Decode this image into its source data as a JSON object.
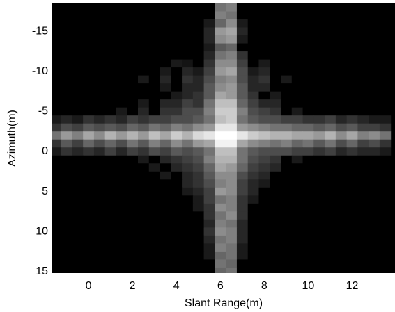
{
  "chart_data": {
    "type": "heatmap",
    "xlabel": "Slant Range(m)",
    "ylabel": "Azimuth(m)",
    "colormap": "gray",
    "xlim": [
      -1.65,
      13.95
    ],
    "ylim": [
      -18.5,
      15.2
    ],
    "y_reversed": true,
    "zlim": [
      0,
      100
    ],
    "xticks": [
      0,
      2,
      4,
      6,
      8,
      10,
      12
    ],
    "yticks": [
      -15,
      -10,
      -5,
      0,
      5,
      10,
      15
    ],
    "x": [
      -1.5,
      -1,
      -0.5,
      0,
      0.5,
      1,
      1.5,
      2,
      2.5,
      3,
      3.5,
      4,
      4.5,
      5,
      5.5,
      6,
      6.5,
      7,
      7.5,
      8,
      8.5,
      9,
      9.5,
      10,
      10.5,
      11,
      11.5,
      12,
      12.5,
      13,
      13.5
    ],
    "y": [
      -18,
      -17,
      -16,
      -15,
      -14,
      -13,
      -12,
      -11,
      -10,
      -9,
      -8,
      -7,
      -6,
      -5,
      -4,
      -3,
      -2,
      -1,
      0,
      1,
      2,
      3,
      4,
      5,
      6,
      7,
      8,
      9,
      10,
      11,
      12,
      13,
      14,
      15
    ],
    "z": [
      [
        0,
        0,
        0,
        0,
        0,
        0,
        0,
        0,
        0,
        0,
        0,
        0,
        0,
        0,
        0,
        45,
        50,
        0,
        0,
        0,
        0,
        0,
        0,
        0,
        0,
        0,
        0,
        0,
        0,
        0,
        0
      ],
      [
        0,
        0,
        0,
        0,
        0,
        0,
        0,
        0,
        0,
        0,
        0,
        0,
        0,
        0,
        0,
        50,
        45,
        0,
        0,
        0,
        0,
        0,
        0,
        0,
        0,
        0,
        0,
        0,
        0,
        0,
        0
      ],
      [
        0,
        0,
        0,
        0,
        0,
        0,
        0,
        0,
        0,
        0,
        0,
        0,
        0,
        0,
        10,
        40,
        55,
        10,
        0,
        0,
        0,
        0,
        0,
        0,
        0,
        0,
        0,
        0,
        0,
        0,
        0
      ],
      [
        0,
        0,
        0,
        0,
        0,
        0,
        0,
        0,
        0,
        0,
        0,
        0,
        0,
        0,
        15,
        60,
        65,
        15,
        0,
        0,
        0,
        0,
        0,
        0,
        0,
        0,
        0,
        0,
        0,
        0,
        0
      ],
      [
        0,
        0,
        0,
        0,
        0,
        0,
        0,
        0,
        0,
        0,
        0,
        0,
        0,
        0,
        15,
        55,
        60,
        10,
        0,
        0,
        0,
        0,
        0,
        0,
        0,
        0,
        0,
        0,
        0,
        0,
        0
      ],
      [
        0,
        0,
        0,
        0,
        0,
        0,
        0,
        0,
        0,
        0,
        0,
        0,
        0,
        0,
        10,
        35,
        40,
        0,
        0,
        0,
        0,
        0,
        0,
        0,
        0,
        0,
        0,
        0,
        0,
        0,
        0
      ],
      [
        0,
        0,
        0,
        0,
        0,
        0,
        0,
        0,
        0,
        0,
        0,
        0,
        0,
        0,
        15,
        45,
        50,
        20,
        0,
        0,
        0,
        0,
        0,
        0,
        0,
        0,
        0,
        0,
        0,
        0,
        0
      ],
      [
        0,
        0,
        0,
        0,
        0,
        0,
        0,
        0,
        0,
        0,
        0,
        10,
        8,
        0,
        20,
        55,
        55,
        25,
        0,
        10,
        0,
        0,
        0,
        0,
        0,
        0,
        0,
        0,
        0,
        0,
        0
      ],
      [
        0,
        0,
        0,
        0,
        0,
        0,
        0,
        0,
        0,
        0,
        10,
        0,
        15,
        10,
        25,
        60,
        65,
        30,
        10,
        15,
        0,
        0,
        0,
        0,
        0,
        0,
        0,
        0,
        0,
        0,
        0
      ],
      [
        0,
        0,
        0,
        0,
        0,
        0,
        0,
        0,
        10,
        0,
        15,
        0,
        20,
        15,
        30,
        50,
        55,
        30,
        15,
        20,
        0,
        10,
        0,
        0,
        0,
        0,
        0,
        0,
        0,
        0,
        0
      ],
      [
        0,
        0,
        0,
        0,
        0,
        0,
        0,
        0,
        0,
        0,
        10,
        0,
        15,
        15,
        35,
        55,
        60,
        35,
        15,
        15,
        0,
        0,
        0,
        0,
        0,
        0,
        0,
        0,
        0,
        0,
        0
      ],
      [
        0,
        0,
        0,
        0,
        0,
        0,
        0,
        0,
        0,
        0,
        0,
        10,
        15,
        20,
        35,
        65,
        60,
        35,
        20,
        0,
        10,
        0,
        0,
        0,
        0,
        0,
        0,
        0,
        0,
        0,
        0
      ],
      [
        0,
        0,
        0,
        0,
        0,
        0,
        0,
        0,
        10,
        0,
        15,
        15,
        25,
        20,
        45,
        75,
        75,
        40,
        25,
        15,
        15,
        0,
        0,
        0,
        0,
        0,
        0,
        0,
        0,
        0,
        0
      ],
      [
        0,
        0,
        0,
        0,
        0,
        0,
        10,
        0,
        15,
        0,
        20,
        20,
        30,
        30,
        50,
        80,
        80,
        50,
        30,
        25,
        20,
        0,
        10,
        0,
        0,
        0,
        0,
        0,
        0,
        0,
        0
      ],
      [
        10,
        15,
        10,
        20,
        15,
        20,
        15,
        25,
        20,
        25,
        25,
        30,
        30,
        35,
        45,
        75,
        80,
        45,
        35,
        30,
        30,
        25,
        25,
        20,
        20,
        25,
        15,
        20,
        15,
        10,
        10
      ],
      [
        20,
        30,
        25,
        35,
        30,
        35,
        30,
        40,
        35,
        45,
        40,
        50,
        45,
        55,
        60,
        90,
        90,
        60,
        55,
        50,
        45,
        45,
        40,
        40,
        35,
        40,
        30,
        35,
        25,
        25,
        20
      ],
      [
        45,
        60,
        50,
        65,
        55,
        70,
        60,
        70,
        60,
        75,
        65,
        80,
        70,
        85,
        90,
        100,
        100,
        90,
        80,
        75,
        70,
        70,
        65,
        65,
        60,
        70,
        55,
        65,
        50,
        55,
        45
      ],
      [
        20,
        35,
        25,
        40,
        30,
        40,
        30,
        45,
        35,
        50,
        40,
        55,
        45,
        60,
        65,
        95,
        95,
        65,
        55,
        50,
        45,
        50,
        40,
        45,
        35,
        45,
        30,
        40,
        25,
        30,
        20
      ],
      [
        10,
        20,
        15,
        20,
        15,
        25,
        15,
        25,
        20,
        30,
        25,
        35,
        30,
        35,
        45,
        75,
        75,
        45,
        35,
        30,
        30,
        30,
        25,
        25,
        20,
        25,
        15,
        20,
        15,
        15,
        10
      ],
      [
        0,
        0,
        0,
        0,
        0,
        0,
        0,
        0,
        10,
        0,
        15,
        20,
        25,
        30,
        50,
        70,
        70,
        45,
        30,
        25,
        20,
        0,
        10,
        0,
        0,
        0,
        0,
        0,
        0,
        0,
        0
      ],
      [
        0,
        0,
        0,
        0,
        0,
        0,
        0,
        0,
        0,
        10,
        0,
        15,
        20,
        25,
        40,
        65,
        60,
        40,
        25,
        20,
        15,
        0,
        0,
        0,
        0,
        0,
        0,
        0,
        0,
        0,
        0
      ],
      [
        0,
        0,
        0,
        0,
        0,
        0,
        0,
        0,
        0,
        0,
        10,
        0,
        15,
        20,
        35,
        55,
        55,
        30,
        20,
        15,
        0,
        0,
        0,
        0,
        0,
        0,
        0,
        0,
        0,
        0,
        0
      ],
      [
        0,
        0,
        0,
        0,
        0,
        0,
        0,
        0,
        0,
        0,
        0,
        0,
        15,
        20,
        30,
        50,
        55,
        25,
        15,
        10,
        0,
        0,
        0,
        0,
        0,
        0,
        0,
        0,
        0,
        0,
        0
      ],
      [
        0,
        0,
        0,
        0,
        0,
        0,
        0,
        0,
        0,
        0,
        0,
        0,
        10,
        15,
        25,
        60,
        55,
        25,
        15,
        0,
        0,
        0,
        0,
        0,
        0,
        0,
        0,
        0,
        0,
        0,
        0
      ],
      [
        0,
        0,
        0,
        0,
        0,
        0,
        0,
        0,
        0,
        0,
        0,
        0,
        0,
        10,
        25,
        45,
        50,
        20,
        10,
        0,
        0,
        0,
        0,
        0,
        0,
        0,
        0,
        0,
        0,
        0,
        0
      ],
      [
        0,
        0,
        0,
        0,
        0,
        0,
        0,
        0,
        0,
        0,
        0,
        0,
        0,
        10,
        20,
        55,
        50,
        20,
        0,
        0,
        0,
        0,
        0,
        0,
        0,
        0,
        0,
        0,
        0,
        0,
        0
      ],
      [
        0,
        0,
        0,
        0,
        0,
        0,
        0,
        0,
        0,
        0,
        0,
        0,
        0,
        0,
        20,
        45,
        55,
        20,
        0,
        0,
        0,
        0,
        0,
        0,
        0,
        0,
        0,
        0,
        0,
        0,
        0
      ],
      [
        0,
        0,
        0,
        0,
        0,
        0,
        0,
        0,
        0,
        0,
        0,
        0,
        0,
        0,
        15,
        50,
        45,
        15,
        0,
        0,
        0,
        0,
        0,
        0,
        0,
        0,
        0,
        0,
        0,
        0,
        0
      ],
      [
        0,
        0,
        0,
        0,
        0,
        0,
        0,
        0,
        0,
        0,
        0,
        0,
        0,
        0,
        20,
        55,
        50,
        15,
        0,
        0,
        0,
        0,
        0,
        0,
        0,
        0,
        0,
        0,
        0,
        0,
        0
      ],
      [
        0,
        0,
        0,
        0,
        0,
        0,
        0,
        0,
        0,
        0,
        0,
        0,
        0,
        0,
        15,
        45,
        50,
        15,
        0,
        0,
        0,
        0,
        0,
        0,
        0,
        0,
        0,
        0,
        0,
        0,
        0
      ],
      [
        0,
        0,
        0,
        0,
        0,
        0,
        0,
        0,
        0,
        0,
        0,
        0,
        0,
        0,
        10,
        50,
        45,
        10,
        0,
        0,
        0,
        0,
        0,
        0,
        0,
        0,
        0,
        0,
        0,
        0,
        0
      ],
      [
        0,
        0,
        0,
        0,
        0,
        0,
        0,
        0,
        0,
        0,
        0,
        0,
        0,
        0,
        10,
        40,
        45,
        10,
        0,
        0,
        0,
        0,
        0,
        0,
        0,
        0,
        0,
        0,
        0,
        0,
        0
      ],
      [
        0,
        0,
        0,
        0,
        0,
        0,
        0,
        0,
        0,
        0,
        0,
        0,
        0,
        0,
        0,
        45,
        40,
        0,
        0,
        0,
        0,
        0,
        0,
        0,
        0,
        0,
        0,
        0,
        0,
        0,
        0
      ],
      [
        0,
        0,
        0,
        0,
        0,
        0,
        0,
        0,
        0,
        0,
        0,
        0,
        0,
        0,
        0,
        40,
        45,
        0,
        0,
        0,
        0,
        0,
        0,
        0,
        0,
        0,
        0,
        0,
        0,
        0,
        0
      ]
    ]
  }
}
